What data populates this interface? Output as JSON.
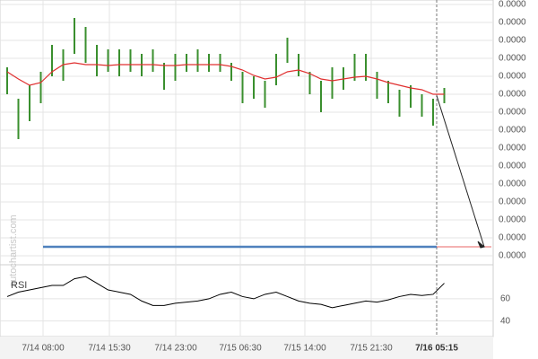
{
  "chart_data": [
    {
      "type": "ohlc",
      "watermark": "autochartist.com",
      "high": [
        3.15e-05,
        2.625e-05,
        2.85e-05,
        3.075e-05,
        3.525e-05,
        3.45e-05,
        3.975e-05,
        3.825e-05,
        3.525e-05,
        3.45e-05,
        3.45e-05,
        3.45e-05,
        3.375e-05,
        3.45e-05,
        3.225e-05,
        3.375e-05,
        3.375e-05,
        3.45e-05,
        3.375e-05,
        3.375e-05,
        3.225e-05,
        3.075e-05,
        3e-05,
        2.925e-05,
        3.375e-05,
        3.645e-05,
        3.375e-05,
        3.075e-05,
        2.925e-05,
        3.15e-05,
        3.15e-05,
        3.375e-05,
        3.375e-05,
        3.075e-05,
        2.925e-05,
        2.775e-05,
        2.85e-05,
        2.7e-05,
        2.625e-05,
        2.805e-05
      ],
      "low": [
        2.7e-05,
        1.95e-05,
        2.25e-05,
        2.55e-05,
        3e-05,
        2.925e-05,
        3.375e-05,
        3.225e-05,
        3e-05,
        3.075e-05,
        3e-05,
        3.075e-05,
        3e-05,
        3.075e-05,
        2.775e-05,
        2.925e-05,
        3.075e-05,
        3.075e-05,
        3.075e-05,
        3.075e-05,
        2.925e-05,
        2.55e-05,
        2.625e-05,
        2.475e-05,
        2.85e-05,
        3.225e-05,
        3e-05,
        2.7e-05,
        2.4e-05,
        2.625e-05,
        2.775e-05,
        2.925e-05,
        2.925e-05,
        2.625e-05,
        2.55e-05,
        2.325e-05,
        2.475e-05,
        2.325e-05,
        2.175e-05,
        2.55e-05
      ],
      "color": "#3a8f2e",
      "ma": {
        "color": "#e03030",
        "values": [
          3.075e-05,
          2.955e-05,
          2.85e-05,
          2.895e-05,
          3.075e-05,
          3.195e-05,
          3.225e-05,
          3.195e-05,
          3.195e-05,
          3.18e-05,
          3.195e-05,
          3.195e-05,
          3.195e-05,
          3.195e-05,
          3.18e-05,
          3.18e-05,
          3.195e-05,
          3.195e-05,
          3.195e-05,
          3.195e-05,
          3.165e-05,
          3.105e-05,
          3.015e-05,
          2.955e-05,
          2.985e-05,
          3.075e-05,
          3.105e-05,
          3.045e-05,
          2.955e-05,
          2.925e-05,
          2.955e-05,
          2.985e-05,
          3e-05,
          2.955e-05,
          2.895e-05,
          2.85e-05,
          2.805e-05,
          2.775e-05,
          2.7e-05,
          2.7e-05
        ]
      },
      "target": 1.5e-06,
      "target_color": "#4f81bd",
      "ylim": [
        0,
        4.2e-05
      ],
      "yticks": [
        {
          "value": 4.2e-05,
          "label": "0.0000"
        },
        {
          "value": 3.9e-05,
          "label": "0.0000"
        },
        {
          "value": 3.6e-05,
          "label": "0.0000"
        },
        {
          "value": 3.3e-05,
          "label": "0.0000"
        },
        {
          "value": 3e-05,
          "label": "0.0000"
        },
        {
          "value": 2.7e-05,
          "label": "0.0000"
        },
        {
          "value": 2.4e-05,
          "label": "0.0000"
        },
        {
          "value": 2.1e-05,
          "label": "0.0000"
        },
        {
          "value": 1.8e-05,
          "label": "0.0000"
        },
        {
          "value": 1.5e-05,
          "label": "0.0000"
        },
        {
          "value": 1.2e-05,
          "label": "0.0000"
        },
        {
          "value": 9e-06,
          "label": "0.0000"
        },
        {
          "value": 6e-06,
          "label": "0.0000"
        },
        {
          "value": 3e-06,
          "label": "0.0000"
        },
        {
          "value": 0,
          "label": "0.0000"
        }
      ],
      "xticks": [
        {
          "value": 3.2,
          "label": "7/14 08:00"
        },
        {
          "value": 9.12,
          "label": "7/14 15:30"
        },
        {
          "value": 15.04,
          "label": "7/14 23:00"
        },
        {
          "value": 20.8,
          "label": "7/15 06:30"
        },
        {
          "value": 26.56,
          "label": "7/15 14:00"
        },
        {
          "value": 32.48,
          "label": "7/15 21:30"
        },
        {
          "value": 38.32,
          "label": "7/16 05:15"
        }
      ],
      "grid": true
    },
    {
      "type": "line",
      "title": "RSI",
      "color": "#000000",
      "values": [
        62,
        66,
        68,
        70,
        72,
        72,
        78,
        80,
        74,
        68,
        66,
        64,
        58,
        54,
        54,
        56,
        57,
        58,
        60,
        64,
        66,
        62,
        60,
        64,
        66,
        62,
        58,
        56,
        55,
        52,
        54,
        56,
        58,
        57,
        59,
        62,
        64,
        63,
        64,
        74
      ],
      "ylim": [
        26,
        89
      ],
      "yticks": [
        60,
        40
      ]
    }
  ]
}
